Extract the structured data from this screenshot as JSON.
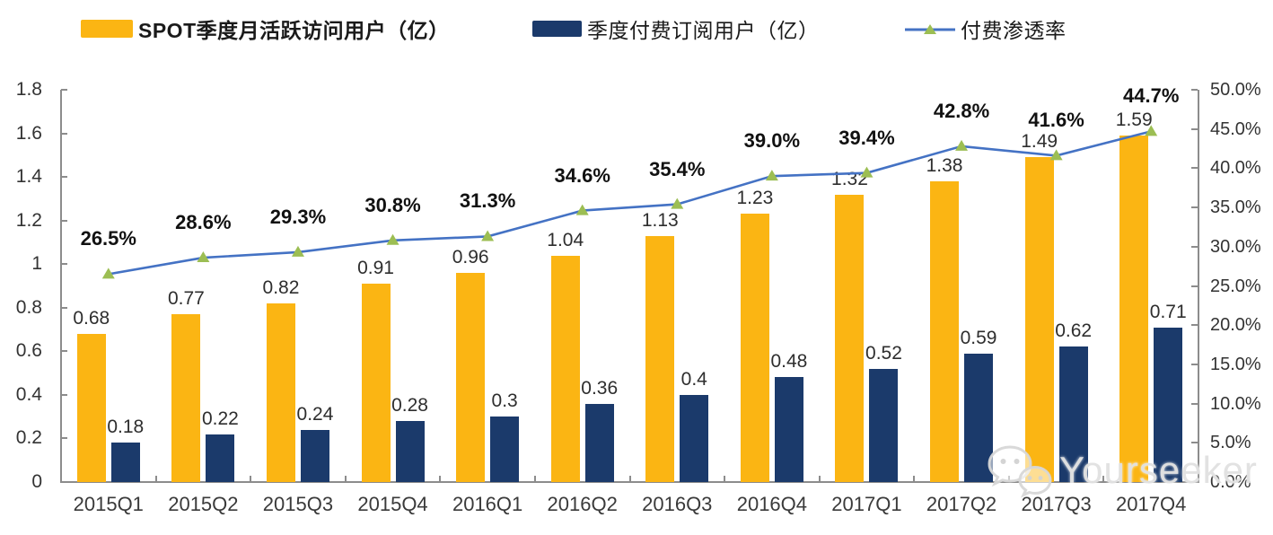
{
  "legend": {
    "items": [
      {
        "label": "SPOT季度月活跃访问用户（亿）",
        "swatch": "bar",
        "bold": true
      },
      {
        "label": "季度付费订阅用户（亿）",
        "swatch": "bar",
        "bold": false
      },
      {
        "label": "付费渗透率",
        "swatch": "line-triangle-marker",
        "bold": false
      }
    ]
  },
  "chart_data": {
    "type": "bar+line combo",
    "categories": [
      "2015Q1",
      "2015Q2",
      "2015Q3",
      "2015Q4",
      "2016Q1",
      "2016Q2",
      "2016Q3",
      "2016Q4",
      "2017Q1",
      "2017Q2",
      "2017Q3",
      "2017Q4"
    ],
    "series": [
      {
        "name": "SPOT季度月活跃访问用户（亿）",
        "type": "bar",
        "axis": "left",
        "color": "#FBB513",
        "values": [
          0.68,
          0.77,
          0.82,
          0.91,
          0.96,
          1.04,
          1.13,
          1.23,
          1.32,
          1.38,
          1.49,
          1.59
        ],
        "labels": [
          "0.68",
          "0.77",
          "0.82",
          "0.91",
          "0.96",
          "1.04",
          "1.13",
          "1.23",
          "1.32",
          "1.38",
          "1.49",
          "1.59"
        ]
      },
      {
        "name": "季度付费订阅用户（亿）",
        "type": "bar",
        "axis": "left",
        "color": "#1B3A6B",
        "values": [
          0.18,
          0.22,
          0.24,
          0.28,
          0.3,
          0.36,
          0.4,
          0.48,
          0.52,
          0.59,
          0.62,
          0.71
        ],
        "labels": [
          "0.18",
          "0.22",
          "0.24",
          "0.28",
          "0.3",
          "0.36",
          "0.4",
          "0.48",
          "0.52",
          "0.59",
          "0.62",
          "0.71"
        ]
      },
      {
        "name": "付费渗透率",
        "type": "line",
        "axis": "right",
        "color": "#4472C4",
        "marker": "triangle",
        "marker_color": "#9CBE53",
        "values": [
          26.5,
          28.6,
          29.3,
          30.8,
          31.3,
          34.6,
          35.4,
          39.0,
          39.4,
          42.8,
          41.6,
          44.7
        ],
        "labels": [
          "26.5%",
          "28.6%",
          "29.3%",
          "30.8%",
          "31.3%",
          "34.6%",
          "35.4%",
          "39.0%",
          "39.4%",
          "42.8%",
          "41.6%",
          "44.7%"
        ]
      }
    ],
    "left_axis": {
      "min": 0,
      "max": 1.8,
      "step": 0.2,
      "tick_labels": [
        "0",
        "0.2",
        "0.4",
        "0.6",
        "0.8",
        "1",
        "1.2",
        "1.4",
        "1.6",
        "1.8"
      ]
    },
    "right_axis": {
      "min": 0,
      "max": 50,
      "step": 5,
      "tick_labels": [
        "0.0%",
        "5.0%",
        "10.0%",
        "15.0%",
        "20.0%",
        "25.0%",
        "30.0%",
        "35.0%",
        "40.0%",
        "45.0%",
        "50.0%"
      ]
    },
    "grid": false,
    "legend_position": "top"
  },
  "watermark": {
    "text": "Yourseeker",
    "icon": "wechat-icon",
    "color": "#E0E0E0"
  }
}
